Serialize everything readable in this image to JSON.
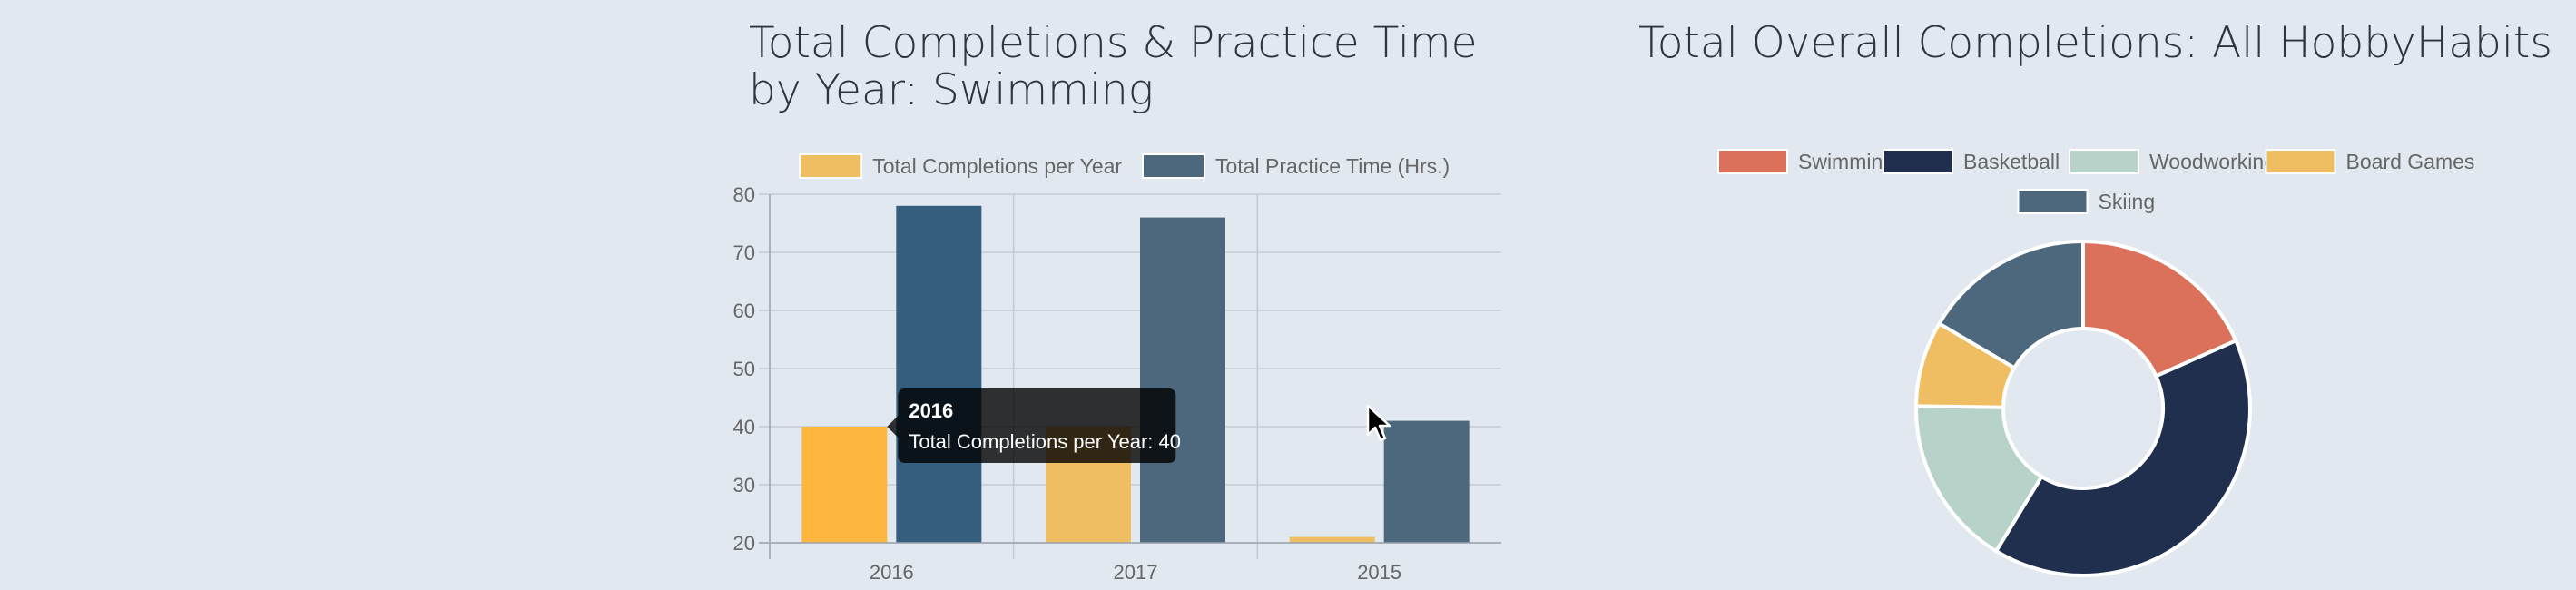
{
  "chart_data": [
    {
      "type": "bar",
      "title": "Total Completions & Practice Time by Year: Swimming",
      "categories": [
        "2016",
        "2017",
        "2015"
      ],
      "series": [
        {
          "name": "Total Completions per Year",
          "values": [
            40,
            40,
            21
          ],
          "color": "#f0be62"
        },
        {
          "name": "Total Practice Time (Hrs.)",
          "values": [
            78,
            76,
            41
          ],
          "color": "#4d677d"
        }
      ],
      "highlight": {
        "series": 0,
        "index": 0,
        "color": "#ffb63f"
      },
      "highlight_hover": {
        "series": 1,
        "index": 0,
        "color": "#365f7f"
      },
      "ylim": [
        20,
        80
      ],
      "yticks": [
        20,
        30,
        40,
        50,
        60,
        70,
        80
      ],
      "grid": true,
      "legend": "top",
      "tooltip": {
        "title": "2016",
        "body": "Total Completions per Year: 40"
      }
    },
    {
      "type": "pie",
      "donut": true,
      "title": "Total Overall Completions: All HobbyHabits",
      "labels": [
        "Swimming",
        "Basketball",
        "Woodworking",
        "Board Games",
        "Skiing"
      ],
      "values": [
        40,
        88,
        36,
        18,
        36
      ],
      "colors": [
        "#db715b",
        "#1f2f4d",
        "#b6d2c9",
        "#f0be62",
        "#4d677d"
      ],
      "legend": "top"
    }
  ]
}
